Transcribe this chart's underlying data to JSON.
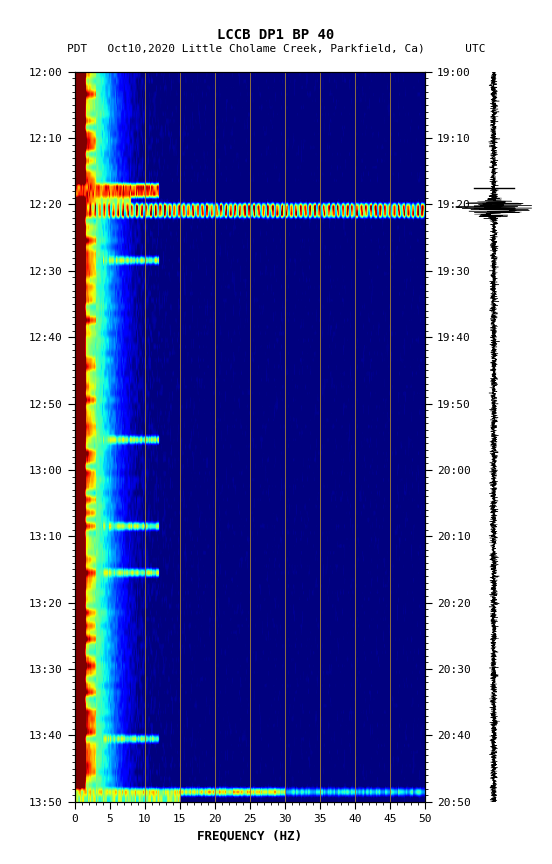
{
  "title_line1": "LCCB DP1 BP 40",
  "title_line2": "PDT   Oct10,2020 Little Cholame Creek, Parkfield, Ca)      UTC",
  "left_time_labels": [
    "12:00",
    "12:10",
    "12:20",
    "12:30",
    "12:40",
    "12:50",
    "13:00",
    "13:10",
    "13:20",
    "13:30",
    "13:40",
    "13:50"
  ],
  "right_time_labels": [
    "19:00",
    "19:10",
    "19:20",
    "19:30",
    "19:40",
    "19:50",
    "20:00",
    "20:10",
    "20:20",
    "20:30",
    "20:40",
    "20:50"
  ],
  "freq_ticks": [
    0,
    5,
    10,
    15,
    20,
    25,
    30,
    35,
    40,
    45,
    50
  ],
  "freq_label": "FREQUENCY (HZ)",
  "vertical_lines_freq": [
    10,
    15,
    20,
    25,
    30,
    35,
    40,
    45
  ],
  "vertical_line_color": "#9B7A3A",
  "background_color": "#ffffff",
  "n_time_steps": 110,
  "n_freq_bins": 300,
  "seed": 42
}
